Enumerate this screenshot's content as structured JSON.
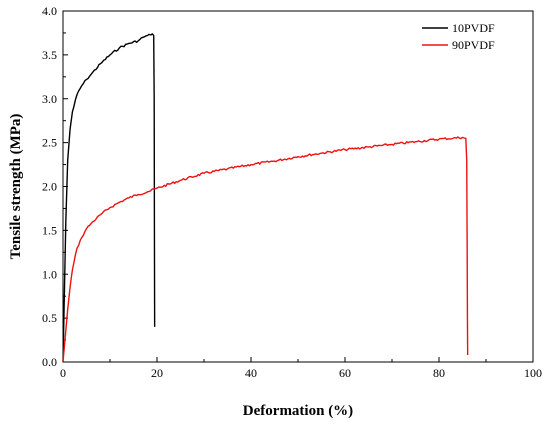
{
  "chart_data": {
    "type": "line",
    "title": "",
    "xlabel": "Deformation (%)",
    "ylabel": "Tensile strength (MPa)",
    "xlim": [
      0,
      100
    ],
    "ylim": [
      0.0,
      4.0
    ],
    "x_ticks": [
      0,
      20,
      40,
      60,
      80,
      100
    ],
    "x_tick_labels": [
      "0",
      "20",
      "40",
      "60",
      "80",
      "100"
    ],
    "y_ticks": [
      0.0,
      0.5,
      1.0,
      1.5,
      2.0,
      2.5,
      3.0,
      3.5,
      4.0
    ],
    "y_tick_labels": [
      "0.0",
      "0.5",
      "1.0",
      "1.5",
      "2.0",
      "2.5",
      "3.0",
      "3.5",
      "4.0"
    ],
    "grid": false,
    "legend_position": "top-right",
    "series": [
      {
        "name": "10PVDF",
        "color": "#000000",
        "x": [
          0,
          0.3,
          0.6,
          1.0,
          1.5,
          2.0,
          3.0,
          4.0,
          5.0,
          6.0,
          8.0,
          10.0,
          12.0,
          14.0,
          16.0,
          17.0,
          18.0,
          18.5,
          19.0,
          19.3,
          19.4,
          19.45,
          19.5
        ],
        "y": [
          0.0,
          0.8,
          1.6,
          2.3,
          2.65,
          2.85,
          3.05,
          3.15,
          3.22,
          3.28,
          3.4,
          3.5,
          3.58,
          3.63,
          3.66,
          3.7,
          3.72,
          3.73,
          3.74,
          3.72,
          3.0,
          1.5,
          0.4
        ]
      },
      {
        "name": "90PVDF",
        "color": "#ee1111",
        "x": [
          0,
          0.5,
          1.0,
          1.5,
          2.0,
          3.0,
          4.0,
          5.0,
          6.0,
          8.0,
          10.0,
          12.0,
          14.0,
          16.0,
          18.0,
          20.0,
          25.0,
          30.0,
          35.0,
          40.0,
          45.0,
          50.0,
          55.0,
          60.0,
          65.0,
          70.0,
          75.0,
          80.0,
          83.0,
          85.0,
          85.7,
          85.9,
          86.0,
          86.05,
          86.1
        ],
        "y": [
          0.0,
          0.3,
          0.6,
          0.85,
          1.05,
          1.3,
          1.42,
          1.52,
          1.58,
          1.68,
          1.76,
          1.82,
          1.87,
          1.91,
          1.94,
          1.98,
          2.07,
          2.15,
          2.2,
          2.25,
          2.29,
          2.34,
          2.38,
          2.42,
          2.45,
          2.48,
          2.51,
          2.54,
          2.55,
          2.56,
          2.55,
          2.3,
          1.2,
          0.5,
          0.08
        ]
      }
    ]
  }
}
